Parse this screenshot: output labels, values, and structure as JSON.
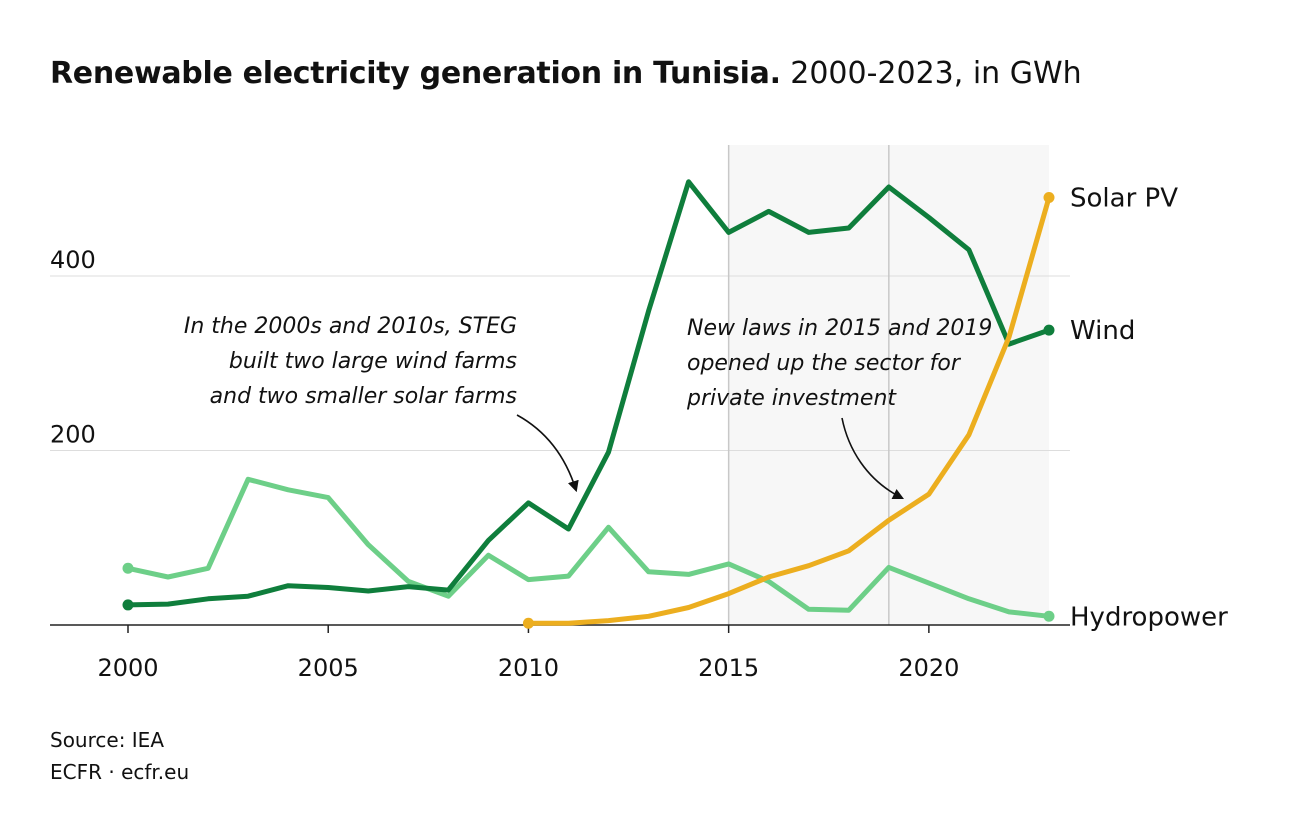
{
  "title": "Renewable electricity generation in Tunisia.",
  "subtitle": "2000-2023, in GWh",
  "footer": {
    "source": "Source: IEA",
    "credit": "ECFR · ecfr.eu"
  },
  "colors": {
    "wind": "#0f7e3c",
    "solar": "#ecae1f",
    "hydro": "#6dcf88",
    "shade": "#f7f7f7",
    "grid": "#dddddd",
    "axis": "#222222",
    "text": "#111111"
  },
  "chart_data": {
    "type": "line",
    "title": "Renewable electricity generation in Tunisia.",
    "subtitle": "2000-2023, in GWh",
    "xlim": [
      2000,
      2023
    ],
    "ylim": [
      0,
      520
    ],
    "x_ticks": [
      2000,
      2005,
      2010,
      2015,
      2020
    ],
    "y_ticks": [
      200,
      400
    ],
    "grid": "horizontal",
    "shaded_range": [
      2015,
      2023
    ],
    "vertical_markers": [
      2015,
      2019
    ],
    "series": [
      {
        "name": "Wind",
        "color": "#0f7e3c",
        "x": [
          2000,
          2001,
          2002,
          2003,
          2004,
          2005,
          2006,
          2007,
          2008,
          2009,
          2010,
          2011,
          2012,
          2013,
          2014,
          2015,
          2016,
          2017,
          2018,
          2019,
          2020,
          2021,
          2022,
          2023
        ],
        "values": [
          23,
          24,
          30,
          33,
          45,
          43,
          39,
          44,
          40,
          97,
          140,
          110,
          198,
          360,
          508,
          450,
          474,
          450,
          455,
          502,
          467,
          430,
          322,
          338
        ]
      },
      {
        "name": "Solar PV",
        "color": "#ecae1f",
        "x": [
          2010,
          2011,
          2012,
          2013,
          2014,
          2015,
          2016,
          2017,
          2018,
          2019,
          2020,
          2021,
          2022,
          2023
        ],
        "values": [
          2,
          2,
          5,
          10,
          20,
          36,
          55,
          68,
          85,
          120,
          150,
          218,
          330,
          490
        ]
      },
      {
        "name": "Hydropower",
        "color": "#6dcf88",
        "x": [
          2000,
          2001,
          2002,
          2003,
          2004,
          2005,
          2006,
          2007,
          2008,
          2009,
          2010,
          2011,
          2012,
          2013,
          2014,
          2015,
          2016,
          2017,
          2018,
          2019,
          2020,
          2021,
          2022,
          2023
        ],
        "values": [
          65,
          55,
          65,
          167,
          155,
          146,
          92,
          50,
          33,
          80,
          52,
          56,
          112,
          61,
          58,
          70,
          50,
          18,
          17,
          66,
          48,
          30,
          15,
          10
        ]
      }
    ],
    "annotations": [
      {
        "id": "ann1",
        "lines": [
          "In the 2000s and 2010s, STEG",
          "built two large wind farms",
          "and two smaller solar farms"
        ]
      },
      {
        "id": "ann2",
        "lines": [
          "New laws in 2015 and 2019",
          "opened up the sector for",
          "private investment"
        ]
      }
    ]
  }
}
